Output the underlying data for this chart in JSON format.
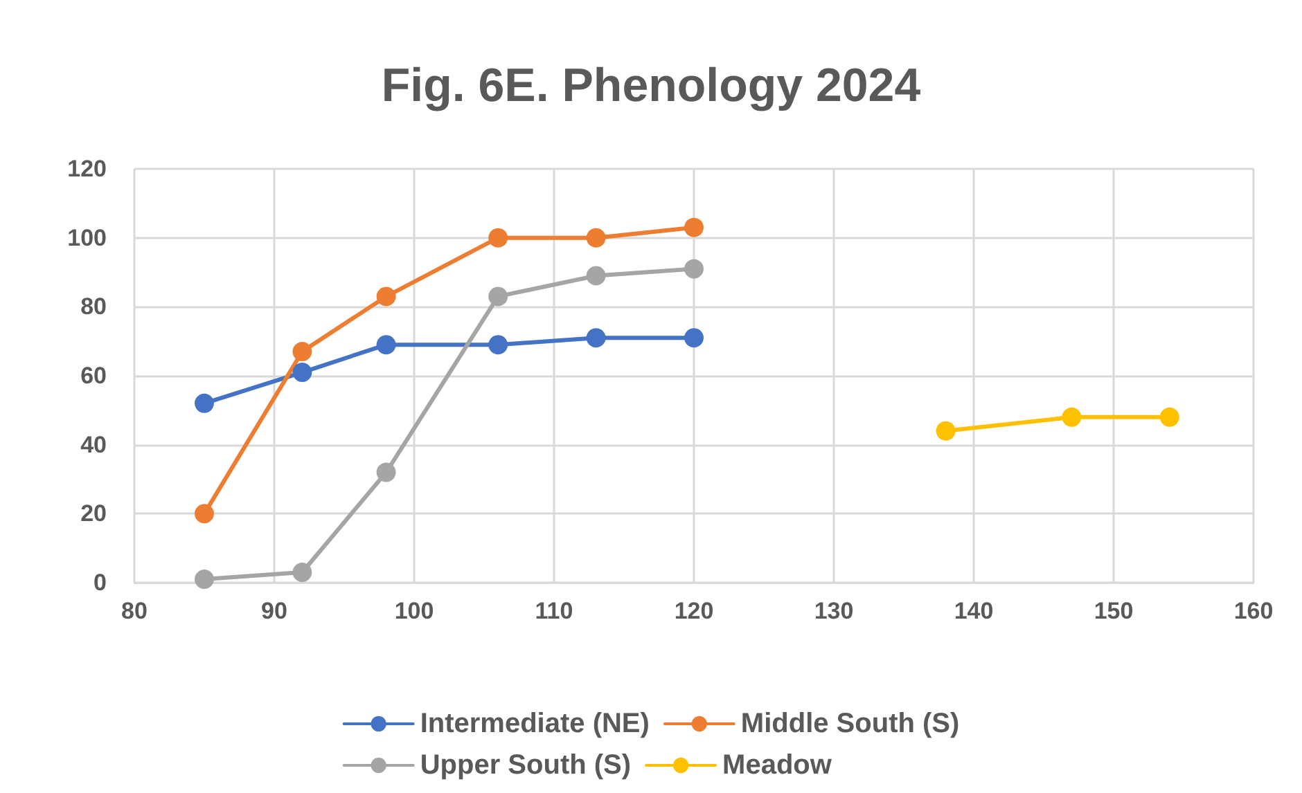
{
  "chart_data": {
    "type": "line",
    "title": "Fig. 6E. Phenology 2024",
    "xlim": [
      80,
      160
    ],
    "xticks": [
      80,
      90,
      100,
      110,
      120,
      130,
      140,
      150,
      160
    ],
    "ylim": [
      0,
      120
    ],
    "yticks": [
      0,
      20,
      40,
      60,
      80,
      100,
      120
    ],
    "grid": true,
    "legend": "bottom",
    "marker": "circle",
    "line_style": "solid",
    "series": [
      {
        "name": "Intermediate (NE)",
        "color": "#4472c4",
        "x": [
          85,
          92,
          98,
          106,
          113,
          120
        ],
        "values": [
          52,
          61,
          69,
          69,
          71,
          71
        ]
      },
      {
        "name": "Middle South (S)",
        "color": "#ed7d31",
        "x": [
          85,
          92,
          98,
          106,
          113,
          120
        ],
        "values": [
          20,
          67,
          83,
          100,
          100,
          103
        ]
      },
      {
        "name": "Upper South (S)",
        "color": "#a5a5a5",
        "x": [
          85,
          92,
          98,
          106,
          113,
          120
        ],
        "values": [
          1,
          3,
          32,
          83,
          89,
          91
        ]
      },
      {
        "name": "Meadow",
        "color": "#ffc000",
        "x": [
          138,
          147,
          154
        ],
        "values": [
          44,
          48,
          48
        ]
      }
    ]
  }
}
